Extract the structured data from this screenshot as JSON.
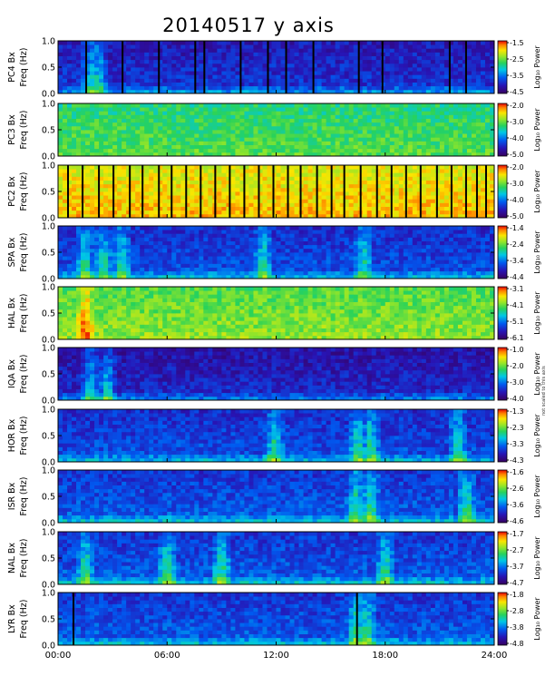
{
  "title": "20140517 y axis",
  "side_note": "not scaled to this axis",
  "freq_ticks": [
    "0.0",
    "0.5",
    "1.0"
  ],
  "time_ticks": [
    "00:00",
    "06:00",
    "12:00",
    "18:00",
    "24:00"
  ],
  "colorbar_label": "Log₁₀ Power",
  "chart_data": {
    "type": "heatmap",
    "title": "20140517 y axis",
    "x_range_hours": [
      0,
      24
    ],
    "x_ticks": [
      "00:00",
      "06:00",
      "12:00",
      "18:00",
      "24:00"
    ],
    "y_range_hz": [
      0,
      1.0
    ],
    "colormap": "rainbow (purple-blue-cyan-green-yellow-red)",
    "panels": [
      {
        "station": "PC4 Bx",
        "ylabel": "Freq (Hz)",
        "colorbar_ticks": [
          "-1.5",
          "-2.5",
          "-3.5",
          "-4.5"
        ],
        "cbar_range": [
          -4.5,
          -1.5
        ],
        "base": 0.15,
        "event_hours": [
          1.8,
          2.2
        ],
        "gaps_hours": [
          1.5,
          3.5,
          5.5,
          7.5,
          8.0,
          10.0,
          11.5,
          12.5,
          14.0,
          16.5,
          17.8,
          21.5,
          22.4
        ],
        "note": "mostly low power with brighter cyan-blue 10-18h"
      },
      {
        "station": "PC3 Bx",
        "ylabel": "Freq (Hz)",
        "colorbar_ticks": [
          "-2.0",
          "-3.0",
          "-4.0",
          "-5.0"
        ],
        "cbar_range": [
          -5.0,
          -2.0
        ],
        "base": 0.55,
        "event_hours": [],
        "gaps_hours": []
      },
      {
        "station": "PC2 Bx",
        "ylabel": "Freq (Hz)",
        "colorbar_ticks": [
          "-2.0",
          "-3.0",
          "-4.0",
          "-5.0"
        ],
        "cbar_range": [
          -5.0,
          -2.0
        ],
        "base": 0.78,
        "event_hours": [],
        "gaps_hours": [
          0.5,
          1.3,
          2.2,
          3.0,
          3.9,
          4.6,
          5.5,
          6.2,
          7.0,
          7.8,
          8.6,
          9.4,
          10.2,
          11.0,
          11.8,
          12.6,
          13.3,
          14.2,
          15.0,
          15.7,
          16.6,
          17.5,
          18.3,
          19.1,
          19.9,
          20.8,
          21.6,
          22.4,
          23.0,
          23.5
        ]
      },
      {
        "station": "SPA Bx",
        "ylabel": "Freq (Hz)",
        "colorbar_ticks": [
          "-1.4",
          "-2.4",
          "-3.4",
          "-4.4"
        ],
        "cbar_range": [
          -4.4,
          -1.4
        ],
        "base": 0.2,
        "event_hours": [
          1.5,
          2.5,
          3.5,
          11.3,
          16.8
        ],
        "gaps_hours": []
      },
      {
        "station": "HAL Bx",
        "ylabel": "Freq (Hz)",
        "colorbar_ticks": [
          "-3.1",
          "-4.1",
          "-5.1",
          "-6.1"
        ],
        "cbar_range": [
          -6.1,
          -3.1
        ],
        "base": 0.62,
        "event_hours": [
          1.5
        ],
        "gaps_hours": []
      },
      {
        "station": "IQA Bx",
        "ylabel": "Freq (Hz)",
        "colorbar_ticks": [
          "-1.0",
          "-2.0",
          "-3.0",
          "-4.0"
        ],
        "cbar_range": [
          -4.0,
          -1.0
        ],
        "base": 0.12,
        "event_hours": [
          1.8,
          2.7
        ],
        "gaps_hours": []
      },
      {
        "station": "HOR Bx",
        "ylabel": "Freq (Hz)",
        "colorbar_ticks": [
          "-1.3",
          "-2.3",
          "-3.3",
          "-4.3"
        ],
        "cbar_range": [
          -4.3,
          -1.3
        ],
        "base": 0.2,
        "event_hours": [
          11.9,
          16.5,
          17.2,
          22.0
        ],
        "gaps_hours": []
      },
      {
        "station": "ISR Bx",
        "ylabel": "Freq (Hz)",
        "colorbar_ticks": [
          "-1.6",
          "-2.6",
          "-3.6",
          "-4.6"
        ],
        "cbar_range": [
          -4.6,
          -1.6
        ],
        "base": 0.22,
        "event_hours": [
          16.4,
          17.2,
          22.5
        ],
        "gaps_hours": []
      },
      {
        "station": "NAL Bx",
        "ylabel": "Freq (Hz)",
        "colorbar_ticks": [
          "-1.7",
          "-2.7",
          "-3.7",
          "-4.7"
        ],
        "cbar_range": [
          -4.7,
          -1.7
        ],
        "base": 0.22,
        "event_hours": [
          1.5,
          6.0,
          9.0,
          18.0
        ],
        "gaps_hours": []
      },
      {
        "station": "LYR Bx",
        "ylabel": "Freq (Hz)",
        "colorbar_ticks": [
          "-1.8",
          "-2.8",
          "-3.8",
          "-4.8"
        ],
        "cbar_range": [
          -4.8,
          -1.8
        ],
        "base": 0.22,
        "event_hours": [
          16.4,
          17.0
        ],
        "gaps_hours": [
          0.8,
          16.4
        ]
      }
    ]
  }
}
